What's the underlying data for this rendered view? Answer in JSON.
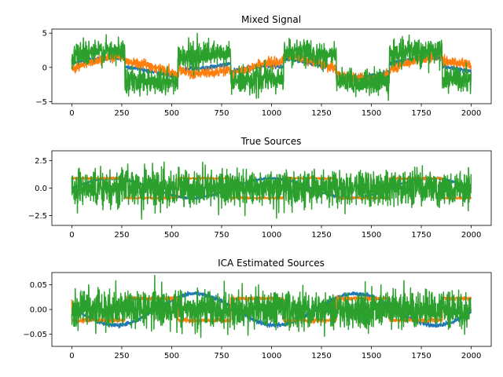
{
  "chart_data": [
    {
      "type": "line",
      "title": "Mixed Signal",
      "xlim": [
        -100,
        2100
      ],
      "ylim": [
        -5.3,
        5.6
      ],
      "xticks": [
        0,
        250,
        500,
        750,
        1000,
        1250,
        1500,
        1750,
        2000
      ],
      "yticks": [
        -5,
        0,
        5
      ],
      "ytick_labels": [
        "−5",
        "0",
        "5"
      ],
      "n_points": 2000,
      "series": [
        {
          "color": "#1f77b4",
          "description": "sinusoid plus square wave mixture, amplitude ~1",
          "noise": 0.15
        },
        {
          "color": "#ff7f0e",
          "description": "sawtooth-like mixture ranging about -1.5 to 2",
          "noise": 0.35
        },
        {
          "color": "#2ca02c",
          "description": "square-wave dominated mixture switching between about +2 and -2 with heavy noise",
          "noise": 0.9
        }
      ]
    },
    {
      "type": "line",
      "title": "True Sources",
      "xlim": [
        -100,
        2100
      ],
      "ylim": [
        -3.4,
        3.4
      ],
      "xticks": [
        0,
        250,
        500,
        750,
        1000,
        1250,
        1500,
        1750,
        2000
      ],
      "yticks": [
        -2.5,
        0,
        2.5
      ],
      "ytick_labels": [
        "−2.5",
        "0.0",
        "2.5"
      ],
      "n_points": 2000,
      "series": [
        {
          "color": "#1f77b4",
          "description": "sinusoid amplitude ~0.9",
          "noise": 0.05
        },
        {
          "color": "#ff7f0e",
          "description": "square wave amplitude ~1",
          "noise": 0.05
        },
        {
          "color": "#2ca02c",
          "description": "noise-dominated source, std ~0.8",
          "noise": 0.8
        }
      ]
    },
    {
      "type": "line",
      "title": "ICA Estimated Sources",
      "xlim": [
        -100,
        2100
      ],
      "ylim": [
        -0.075,
        0.075
      ],
      "xticks": [
        0,
        250,
        500,
        750,
        1000,
        1250,
        1500,
        1750,
        2000
      ],
      "yticks": [
        -0.05,
        0,
        0.05
      ],
      "ytick_labels": [
        "−0.05",
        "0.00",
        "0.05"
      ],
      "n_points": 2000,
      "series": [
        {
          "color": "#1f77b4",
          "description": "slow sinusoid amplitude ~0.035",
          "noise": 0.002
        },
        {
          "color": "#ff7f0e",
          "description": "square wave amplitude ~0.022",
          "noise": 0.002
        },
        {
          "color": "#2ca02c",
          "description": "noise-dominated estimate, std ~0.018",
          "noise": 0.018
        }
      ]
    }
  ],
  "xtick_labels": [
    "0",
    "250",
    "500",
    "750",
    "1000",
    "1250",
    "1500",
    "1750",
    "2000"
  ]
}
